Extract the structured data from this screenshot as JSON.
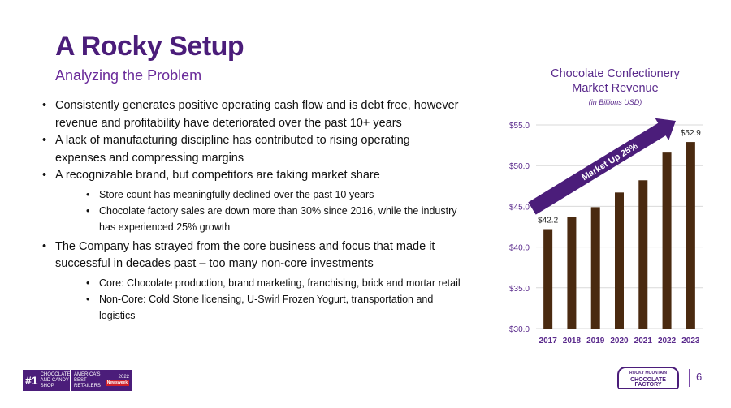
{
  "header": {
    "title": "A Rocky Setup",
    "subtitle": "Analyzing the Problem"
  },
  "bullets": [
    {
      "text": "Consistently generates positive operating cash flow and is debt free, however revenue and profitability have deteriorated over the past 10+ years",
      "sub": []
    },
    {
      "text": "A lack of manufacturing discipline has contributed to rising operating expenses and compressing margins",
      "sub": []
    },
    {
      "text": "A recognizable brand, but competitors are taking market share",
      "sub": [
        "Store count has meaningfully declined over the past 10 years",
        "Chocolate factory sales are down more than 30% since 2016, while the industry has experienced 25% growth"
      ]
    },
    {
      "text": "The Company has strayed from the core business and focus that made it successful in decades past – too many non-core investments",
      "sub": [
        "Core: Chocolate production, brand marketing, franchising, brick and mortar retail",
        "Non-Core: Cold Stone licensing, U-Swirl Frozen Yogurt, transportation and logistics"
      ]
    }
  ],
  "chart_data": {
    "type": "bar",
    "title_line1": "Chocolate Confectionery",
    "title_line2": "Market Revenue",
    "unit_note": "(in Billions USD)",
    "categories": [
      "2017",
      "2018",
      "2019",
      "2020",
      "2021",
      "2022",
      "2023"
    ],
    "values": [
      42.2,
      43.7,
      44.9,
      46.7,
      48.2,
      51.6,
      52.9
    ],
    "data_labels": {
      "0": "$42.2",
      "6": "$52.9"
    },
    "ylim": [
      30,
      55
    ],
    "yticks": [
      "$30.0",
      "$35.0",
      "$40.0",
      "$45.0",
      "$50.0",
      "$55.0"
    ],
    "ytick_values": [
      30,
      35,
      40,
      45,
      50,
      55
    ],
    "grid": true,
    "annotation": "Market Up 25%",
    "bar_color": "#4a2a10",
    "arrow_color": "#4b1d7a"
  },
  "footer": {
    "badge1_rank": "#1",
    "badge1_text": "CHOCOLATE AND CANDY SHOP",
    "badge2_text": "AMERICA'S BEST RETAILERS",
    "badge2_year": "2022",
    "badge2_brand": "Newsweek",
    "logo_top": "ROCKY MOUNTAIN",
    "logo_main": "CHOCOLATE FACTORY",
    "page_number": "6"
  },
  "colors": {
    "brand_purple": "#4b1d7a",
    "accent_purple": "#6a2a9a"
  }
}
